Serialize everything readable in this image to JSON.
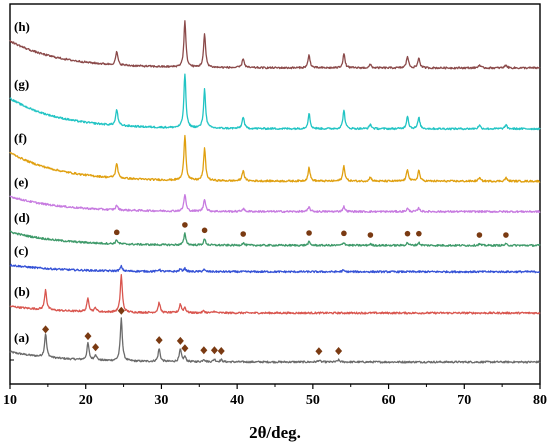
{
  "chart_data": {
    "type": "line",
    "title": "",
    "xlabel": "2θ/deg.",
    "ylabel": "",
    "xlim": [
      10,
      80
    ],
    "xticks": [
      10,
      20,
      30,
      40,
      50,
      60,
      70,
      80
    ],
    "y_ticks_shown": false,
    "grid": false,
    "marker_colors": {
      "diamond": "#7a3a12",
      "circle": "#7a3a12"
    },
    "series": [
      {
        "name": "(a)",
        "color": "#6b6b6b",
        "level": 0.0,
        "start_rise": 0.03,
        "peaks": [
          {
            "x": 14.7,
            "h": 0.07
          },
          {
            "x": 20.3,
            "h": 0.05
          },
          {
            "x": 21.3,
            "h": 0.017
          },
          {
            "x": 24.7,
            "h": 0.125
          },
          {
            "x": 29.7,
            "h": 0.038
          },
          {
            "x": 32.5,
            "h": 0.036
          },
          {
            "x": 33.1,
            "h": 0.014
          },
          {
            "x": 35.6,
            "h": 0.008
          },
          {
            "x": 37.0,
            "h": 0.008
          },
          {
            "x": 37.9,
            "h": 0.006
          },
          {
            "x": 50.8,
            "h": 0.005
          },
          {
            "x": 53.4,
            "h": 0.006
          }
        ],
        "markers": [
          {
            "shape": "diamond",
            "x": 14.7
          },
          {
            "shape": "diamond",
            "x": 20.3
          },
          {
            "shape": "diamond",
            "x": 21.3
          },
          {
            "shape": "diamond",
            "x": 24.7
          },
          {
            "shape": "diamond",
            "x": 29.7
          },
          {
            "shape": "diamond",
            "x": 32.5
          },
          {
            "shape": "diamond",
            "x": 33.1
          },
          {
            "shape": "diamond",
            "x": 35.6
          },
          {
            "shape": "diamond",
            "x": 37.0
          },
          {
            "shape": "diamond",
            "x": 37.9
          },
          {
            "shape": "diamond",
            "x": 50.8
          },
          {
            "shape": "diamond",
            "x": 53.4
          }
        ]
      },
      {
        "name": "(b)",
        "color": "#d9564f",
        "level": 0.145,
        "start_rise": 0.02,
        "peaks": [
          {
            "x": 14.7,
            "h": 0.06
          },
          {
            "x": 20.3,
            "h": 0.04
          },
          {
            "x": 21.3,
            "h": 0.012
          },
          {
            "x": 24.7,
            "h": 0.11
          },
          {
            "x": 29.7,
            "h": 0.03
          },
          {
            "x": 32.5,
            "h": 0.026
          },
          {
            "x": 33.1,
            "h": 0.015
          },
          {
            "x": 35.6,
            "h": 0.006
          },
          {
            "x": 37.0,
            "h": 0.005
          }
        ],
        "markers": []
      },
      {
        "name": "(c)",
        "color": "#3552d6",
        "level": 0.267,
        "start_rise": 0.02,
        "peaks": [
          {
            "x": 24.7,
            "h": 0.014
          },
          {
            "x": 29.7,
            "h": 0.006
          },
          {
            "x": 32.5,
            "h": 0.007
          },
          {
            "x": 33.1,
            "h": 0.009
          },
          {
            "x": 35.6,
            "h": 0.006
          },
          {
            "x": 54.0,
            "h": 0.004
          }
        ],
        "markers": []
      },
      {
        "name": "(d)",
        "color": "#3f9a6a",
        "level": 0.345,
        "start_rise": 0.04,
        "peaks": [
          {
            "x": 24.1,
            "h": 0.012
          },
          {
            "x": 33.1,
            "h": 0.034
          },
          {
            "x": 35.7,
            "h": 0.018
          },
          {
            "x": 40.8,
            "h": 0.007
          },
          {
            "x": 49.5,
            "h": 0.01
          },
          {
            "x": 54.1,
            "h": 0.009
          },
          {
            "x": 57.6,
            "h": 0.004
          },
          {
            "x": 62.5,
            "h": 0.008
          },
          {
            "x": 64.0,
            "h": 0.008
          },
          {
            "x": 72.0,
            "h": 0.004
          },
          {
            "x": 75.5,
            "h": 0.004
          }
        ],
        "markers": [
          {
            "shape": "circle",
            "x": 24.1
          },
          {
            "shape": "circle",
            "x": 33.1
          },
          {
            "shape": "circle",
            "x": 35.7
          },
          {
            "shape": "circle",
            "x": 40.8
          },
          {
            "shape": "circle",
            "x": 49.5
          },
          {
            "shape": "circle",
            "x": 54.1
          },
          {
            "shape": "circle",
            "x": 57.6
          },
          {
            "shape": "circle",
            "x": 62.5
          },
          {
            "shape": "circle",
            "x": 64.0
          },
          {
            "shape": "circle",
            "x": 72.0
          },
          {
            "shape": "circle",
            "x": 75.5
          }
        ]
      },
      {
        "name": "(e)",
        "color": "#c77be0",
        "level": 0.445,
        "start_rise": 0.045,
        "peaks": [
          {
            "x": 24.1,
            "h": 0.014
          },
          {
            "x": 33.1,
            "h": 0.05
          },
          {
            "x": 35.7,
            "h": 0.037
          },
          {
            "x": 40.8,
            "h": 0.009
          },
          {
            "x": 49.5,
            "h": 0.013
          },
          {
            "x": 54.1,
            "h": 0.015
          },
          {
            "x": 62.5,
            "h": 0.009
          },
          {
            "x": 64.0,
            "h": 0.01
          }
        ],
        "markers": []
      },
      {
        "name": "(f)",
        "color": "#e0a010",
        "level": 0.535,
        "start_rise": 0.085,
        "peaks": [
          {
            "x": 24.1,
            "h": 0.045
          },
          {
            "x": 33.1,
            "h": 0.135
          },
          {
            "x": 35.7,
            "h": 0.095
          },
          {
            "x": 40.8,
            "h": 0.032
          },
          {
            "x": 49.5,
            "h": 0.04
          },
          {
            "x": 54.1,
            "h": 0.045
          },
          {
            "x": 57.6,
            "h": 0.012
          },
          {
            "x": 62.5,
            "h": 0.035
          },
          {
            "x": 64.0,
            "h": 0.032
          },
          {
            "x": 72.0,
            "h": 0.01
          },
          {
            "x": 75.5,
            "h": 0.01
          }
        ],
        "markers": []
      },
      {
        "name": "(g)",
        "color": "#22c4c4",
        "level": 0.69,
        "start_rise": 0.09,
        "peaks": [
          {
            "x": 24.1,
            "h": 0.048
          },
          {
            "x": 33.1,
            "h": 0.16
          },
          {
            "x": 35.7,
            "h": 0.115
          },
          {
            "x": 40.8,
            "h": 0.035
          },
          {
            "x": 49.5,
            "h": 0.045
          },
          {
            "x": 54.1,
            "h": 0.055
          },
          {
            "x": 57.6,
            "h": 0.013
          },
          {
            "x": 62.5,
            "h": 0.038
          },
          {
            "x": 64.0,
            "h": 0.033
          },
          {
            "x": 72.0,
            "h": 0.011
          },
          {
            "x": 75.5,
            "h": 0.011
          }
        ],
        "markers": []
      },
      {
        "name": "(h)",
        "color": "#8b4a4a",
        "level": 0.87,
        "start_rise": 0.08,
        "peaks": [
          {
            "x": 24.1,
            "h": 0.04
          },
          {
            "x": 33.1,
            "h": 0.135
          },
          {
            "x": 35.7,
            "h": 0.098
          },
          {
            "x": 40.8,
            "h": 0.028
          },
          {
            "x": 49.5,
            "h": 0.038
          },
          {
            "x": 54.1,
            "h": 0.042
          },
          {
            "x": 57.6,
            "h": 0.01
          },
          {
            "x": 62.5,
            "h": 0.035
          },
          {
            "x": 64.0,
            "h": 0.03
          },
          {
            "x": 72.0,
            "h": 0.009
          },
          {
            "x": 75.5,
            "h": 0.009
          }
        ],
        "markers": []
      }
    ]
  }
}
